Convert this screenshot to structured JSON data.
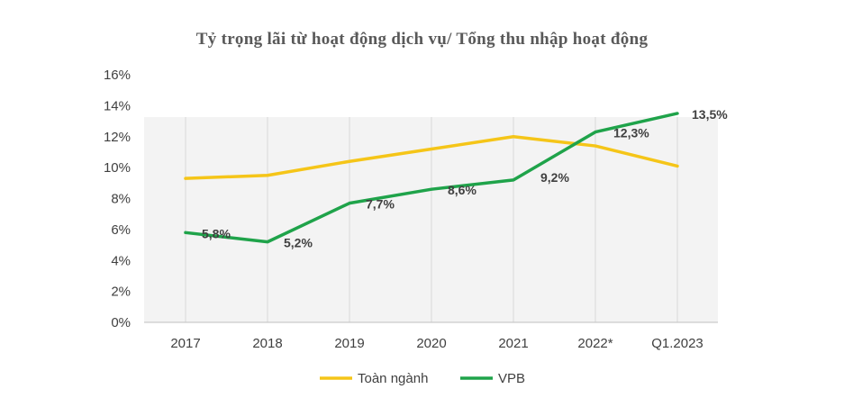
{
  "chart_data": {
    "type": "line",
    "title": "Tỷ trọng lãi từ hoạt động dịch vụ/ Tổng thu nhập hoạt động",
    "categories": [
      "2017",
      "2018",
      "2019",
      "2020",
      "2021",
      "2022*",
      "Q1.2023"
    ],
    "ylim": [
      0,
      16
    ],
    "y_ticks": [
      "0%",
      "2%",
      "4%",
      "6%",
      "8%",
      "10%",
      "12%",
      "14%",
      "16%"
    ],
    "grid": "vertical",
    "legend_position": "bottom",
    "series": [
      {
        "name": "Toàn ngành",
        "color": "#F5C518",
        "values": [
          9.3,
          9.5,
          10.4,
          11.2,
          12.0,
          11.4,
          10.1
        ],
        "labels": [
          "",
          "",
          "",
          "",
          "",
          "",
          ""
        ]
      },
      {
        "name": "VPB",
        "color": "#1FA34A",
        "values": [
          5.8,
          5.2,
          7.7,
          8.6,
          9.2,
          12.3,
          13.5
        ],
        "labels": [
          "5,8%",
          "5,2%",
          "7,7%",
          "8,6%",
          "9,2%",
          "12,3%",
          "13,5%"
        ]
      }
    ]
  }
}
